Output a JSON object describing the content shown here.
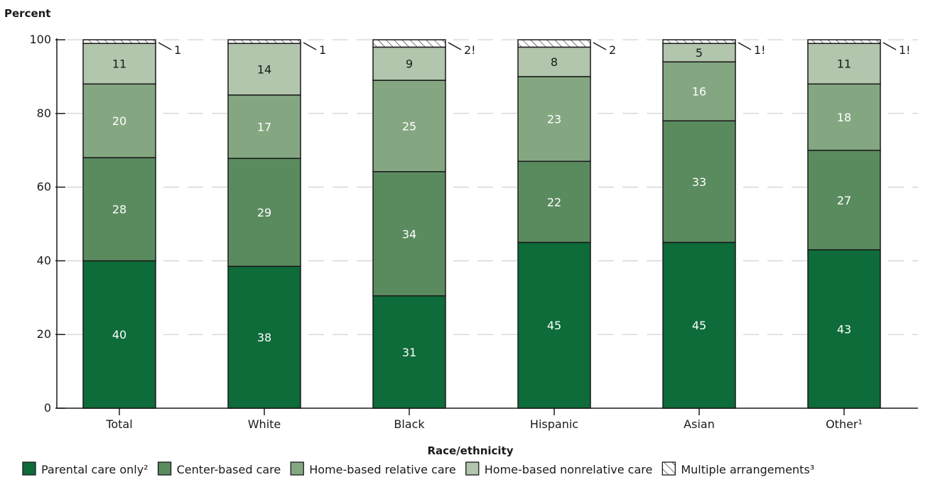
{
  "chart_data": {
    "type": "bar",
    "stacked": true,
    "ylabel": "Percent",
    "xlabel": "Race/ethnicity",
    "ylim": [
      0,
      100
    ],
    "yticks": [
      0,
      20,
      40,
      60,
      80,
      100
    ],
    "grid": true,
    "legend_position": "bottom",
    "categories": [
      "Total",
      "White",
      "Black",
      "Hispanic",
      "Asian",
      "Other¹"
    ],
    "series": [
      {
        "name": "Parental care only²",
        "color": "#0e6b3a",
        "label_color": "#ffffff",
        "pattern": "solid",
        "values": [
          40,
          38.5,
          30.5,
          45,
          45,
          43
        ],
        "labels": [
          "40",
          "38",
          "31",
          "45",
          "45",
          "43"
        ]
      },
      {
        "name": "Center-based care",
        "color": "#5a8b5f",
        "label_color": "#ffffff",
        "pattern": "solid",
        "values": [
          28,
          29.3,
          33.7,
          22,
          33,
          27
        ],
        "labels": [
          "28",
          "29",
          "34",
          "22",
          "33",
          "27"
        ]
      },
      {
        "name": "Home-based relative care",
        "color": "#84a782",
        "label_color": "#ffffff",
        "pattern": "solid",
        "values": [
          20,
          17.2,
          24.8,
          23,
          16,
          18
        ],
        "labels": [
          "20",
          "17",
          "25",
          "23",
          "16",
          "18"
        ]
      },
      {
        "name": "Home-based nonrelative care",
        "color": "#b1c6ad",
        "label_color": "#1a1a1a",
        "pattern": "solid",
        "values": [
          11,
          14,
          9,
          8,
          5,
          11
        ],
        "labels": [
          "11",
          "14",
          "9",
          "8",
          "5",
          "11"
        ]
      },
      {
        "name": "Multiple arrangements³",
        "color": "#ffffff",
        "label_color": "#1a1a1a",
        "pattern": "hatch",
        "values": [
          1,
          1,
          2,
          2,
          1,
          1
        ],
        "labels": [
          "1",
          "1",
          "2!",
          "2",
          "1!",
          "1!"
        ],
        "label_outside": true
      }
    ]
  }
}
